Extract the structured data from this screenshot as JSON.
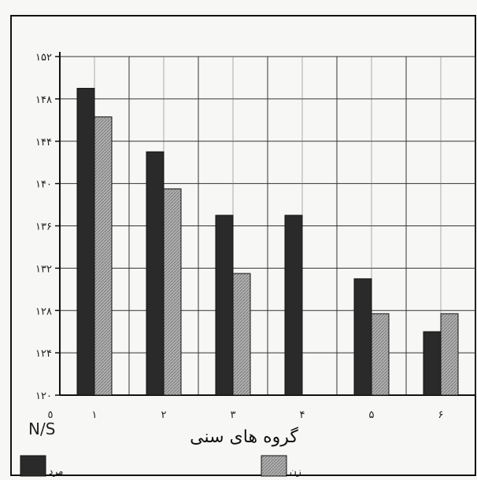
{
  "chart_data": {
    "type": "bar",
    "xlabel": "گروه های سنی",
    "corner_label": "N/S",
    "origin_label": "٥",
    "categories": [
      "۱",
      "۲",
      "۳",
      "۴",
      "۵",
      "۶"
    ],
    "series": [
      {
        "name": "مرد",
        "color": "#2a2a2a",
        "values": [
          149,
          143,
          137,
          137,
          131,
          126
        ]
      },
      {
        "name": "زن",
        "color": "#a8a8a8",
        "values": [
          146.3,
          139.5,
          131.5,
          null,
          127.7,
          127.7
        ]
      }
    ],
    "ylim": [
      120,
      152
    ],
    "yticks": [
      "۱۲۰",
      "۱۲۴",
      "۱۲۸",
      "۱۳۲",
      "۱۳۶",
      "۱۴۰",
      "۱۴۴",
      "۱۴۸",
      "۱۵۲"
    ],
    "grid": true,
    "legend": "bottom"
  }
}
